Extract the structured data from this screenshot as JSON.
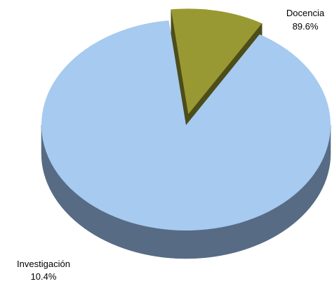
{
  "chart_data": {
    "type": "pie",
    "style": "3d-exploded",
    "title": "",
    "legend": "none",
    "slices": [
      {
        "label": "Docencia",
        "percent_text": "89.6%",
        "value": 89.6,
        "color": "#A6CAF0",
        "side_color": "#576B84"
      },
      {
        "label": "Investigación",
        "percent_text": "10.4%",
        "value": 10.4,
        "color": "#999933",
        "side_color": "#4D4D1A"
      }
    ]
  }
}
